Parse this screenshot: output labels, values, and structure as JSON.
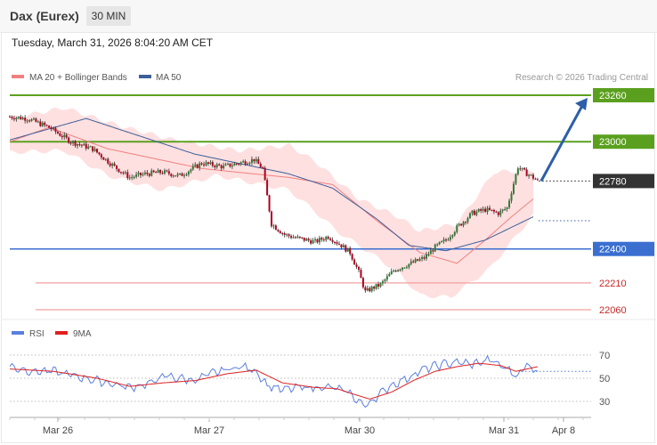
{
  "header": {
    "title": "Dax (Eurex)",
    "timeframe": "30 MIN"
  },
  "datetime": "Tuesday, March 31, 2026 8:04:20 AM CET",
  "legend": {
    "ma20_label": "MA 20 + Bollinger Bands",
    "ma50_label": "MA 50",
    "rsi_label": "RSI",
    "rsi_ma_label": "9MA"
  },
  "credit": "Research © 2026 Trading Central",
  "colors": {
    "resistance": "#5aa01e",
    "support": "#3a6fd0",
    "pivot": "#333333",
    "target": "#e06060",
    "ma20": "#f08080",
    "ma50": "#3d5f9a",
    "band": "#ffd6d6",
    "up_candle": "#2e7d32",
    "down_candle": "#b00020",
    "rsi": "#5b7fde",
    "rsi_ma": "#e02020",
    "arrow": "#2d5fa8"
  },
  "chart_data": [
    {
      "type": "candlestick",
      "title": "Dax (Eurex)",
      "timeframe": "30 MIN",
      "ylim": [
        21985,
        23305
      ],
      "x_labels": [
        "Mar 26",
        "Mar 27",
        "Mar 30",
        "Mar 31",
        "Apr 8"
      ],
      "levels": [
        {
          "value": 23260,
          "label": "23260",
          "kind": "resistance"
        },
        {
          "value": 23000,
          "label": "23000",
          "kind": "resistance"
        },
        {
          "value": 22780,
          "label": "22780",
          "kind": "pivot"
        },
        {
          "value": 22400,
          "label": "22400",
          "kind": "support"
        },
        {
          "value": 22210,
          "label": "22210",
          "kind": "target"
        },
        {
          "value": 22060,
          "label": "22060",
          "kind": "target"
        }
      ],
      "series": [
        {
          "name": "MA 20 + Bollinger Bands",
          "anchors": [
            [
              0,
              23000
            ],
            [
              18,
              23080
            ],
            [
              45,
              22960
            ],
            [
              88,
              22850
            ],
            [
              128,
              22800
            ],
            [
              148,
              22760
            ],
            [
              168,
              22560
            ],
            [
              188,
              22380
            ],
            [
              205,
              22320
            ],
            [
              218,
              22450
            ],
            [
              230,
              22580
            ],
            [
              240,
              22680
            ]
          ]
        },
        {
          "name": "MA 50",
          "anchors": [
            [
              0,
              23010
            ],
            [
              35,
              23130
            ],
            [
              85,
              22930
            ],
            [
              128,
              22820
            ],
            [
              148,
              22740
            ],
            [
              168,
              22570
            ],
            [
              183,
              22420
            ],
            [
              200,
              22390
            ],
            [
              218,
              22450
            ],
            [
              240,
              22580
            ]
          ]
        }
      ],
      "bollinger": {
        "upper": [
          [
            0,
            23130
          ],
          [
            25,
            23190
          ],
          [
            50,
            23090
          ],
          [
            75,
            23010
          ],
          [
            105,
            22950
          ],
          [
            128,
            22980
          ],
          [
            140,
            22890
          ],
          [
            160,
            22680
          ],
          [
            178,
            22580
          ],
          [
            188,
            22500
          ],
          [
            205,
            22540
          ],
          [
            222,
            22830
          ],
          [
            240,
            22840
          ]
        ],
        "lower": [
          [
            0,
            22940
          ],
          [
            25,
            22950
          ],
          [
            45,
            22810
          ],
          [
            70,
            22730
          ],
          [
            95,
            22810
          ],
          [
            128,
            22730
          ],
          [
            140,
            22610
          ],
          [
            150,
            22500
          ],
          [
            165,
            22380
          ],
          [
            178,
            22270
          ],
          [
            188,
            22140
          ],
          [
            202,
            22130
          ],
          [
            220,
            22290
          ],
          [
            240,
            22590
          ]
        ]
      },
      "price_anchors": [
        [
          0,
          23140
        ],
        [
          8,
          23130
        ],
        [
          18,
          23080
        ],
        [
          28,
          23000
        ],
        [
          38,
          22960
        ],
        [
          48,
          22860
        ],
        [
          55,
          22800
        ],
        [
          62,
          22820
        ],
        [
          70,
          22830
        ],
        [
          78,
          22810
        ],
        [
          88,
          22880
        ],
        [
          98,
          22860
        ],
        [
          105,
          22880
        ],
        [
          112,
          22900
        ],
        [
          116,
          22850
        ],
        [
          120,
          22540
        ],
        [
          126,
          22480
        ],
        [
          132,
          22460
        ],
        [
          140,
          22440
        ],
        [
          146,
          22470
        ],
        [
          152,
          22420
        ],
        [
          156,
          22380
        ],
        [
          160,
          22270
        ],
        [
          163,
          22160
        ],
        [
          166,
          22180
        ],
        [
          170,
          22200
        ],
        [
          176,
          22280
        ],
        [
          182,
          22310
        ],
        [
          186,
          22330
        ],
        [
          190,
          22350
        ],
        [
          195,
          22410
        ],
        [
          200,
          22450
        ],
        [
          205,
          22520
        ],
        [
          212,
          22600
        ],
        [
          218,
          22620
        ],
        [
          224,
          22600
        ],
        [
          228,
          22630
        ],
        [
          233,
          22860
        ],
        [
          236,
          22830
        ],
        [
          240,
          22800
        ],
        [
          242,
          22780
        ]
      ],
      "projection": {
        "from": 22780,
        "to": 23260
      }
    },
    {
      "type": "line",
      "title": "RSI",
      "ylim": [
        22,
        78
      ],
      "yticks": [
        30,
        50,
        70
      ],
      "series": [
        {
          "name": "RSI",
          "anchors": [
            [
              0,
              60
            ],
            [
              10,
              56
            ],
            [
              20,
              56
            ],
            [
              30,
              52
            ],
            [
              40,
              48
            ],
            [
              50,
              44
            ],
            [
              55,
              42
            ],
            [
              65,
              46
            ],
            [
              70,
              52
            ],
            [
              78,
              50
            ],
            [
              85,
              48
            ],
            [
              92,
              54
            ],
            [
              100,
              58
            ],
            [
              107,
              60
            ],
            [
              113,
              56
            ],
            [
              118,
              44
            ],
            [
              125,
              40
            ],
            [
              132,
              42
            ],
            [
              140,
              42
            ],
            [
              148,
              42
            ],
            [
              155,
              38
            ],
            [
              160,
              30
            ],
            [
              163,
              26
            ],
            [
              168,
              34
            ],
            [
              175,
              44
            ],
            [
              182,
              50
            ],
            [
              190,
              58
            ],
            [
              198,
              62
            ],
            [
              205,
              64
            ],
            [
              212,
              62
            ],
            [
              220,
              66
            ],
            [
              228,
              58
            ],
            [
              233,
              52
            ],
            [
              237,
              62
            ],
            [
              242,
              56
            ]
          ]
        },
        {
          "name": "9MA",
          "anchors": [
            [
              0,
              58
            ],
            [
              20,
              56
            ],
            [
              40,
              50
            ],
            [
              55,
              43
            ],
            [
              70,
              46
            ],
            [
              85,
              48
            ],
            [
              100,
              54
            ],
            [
              113,
              57
            ],
            [
              125,
              46
            ],
            [
              140,
              42
            ],
            [
              150,
              41
            ],
            [
              158,
              36
            ],
            [
              165,
              32
            ],
            [
              175,
              38
            ],
            [
              185,
              48
            ],
            [
              195,
              56
            ],
            [
              205,
              60
            ],
            [
              215,
              63
            ],
            [
              225,
              61
            ],
            [
              232,
              56
            ],
            [
              242,
              60
            ]
          ]
        }
      ]
    }
  ]
}
